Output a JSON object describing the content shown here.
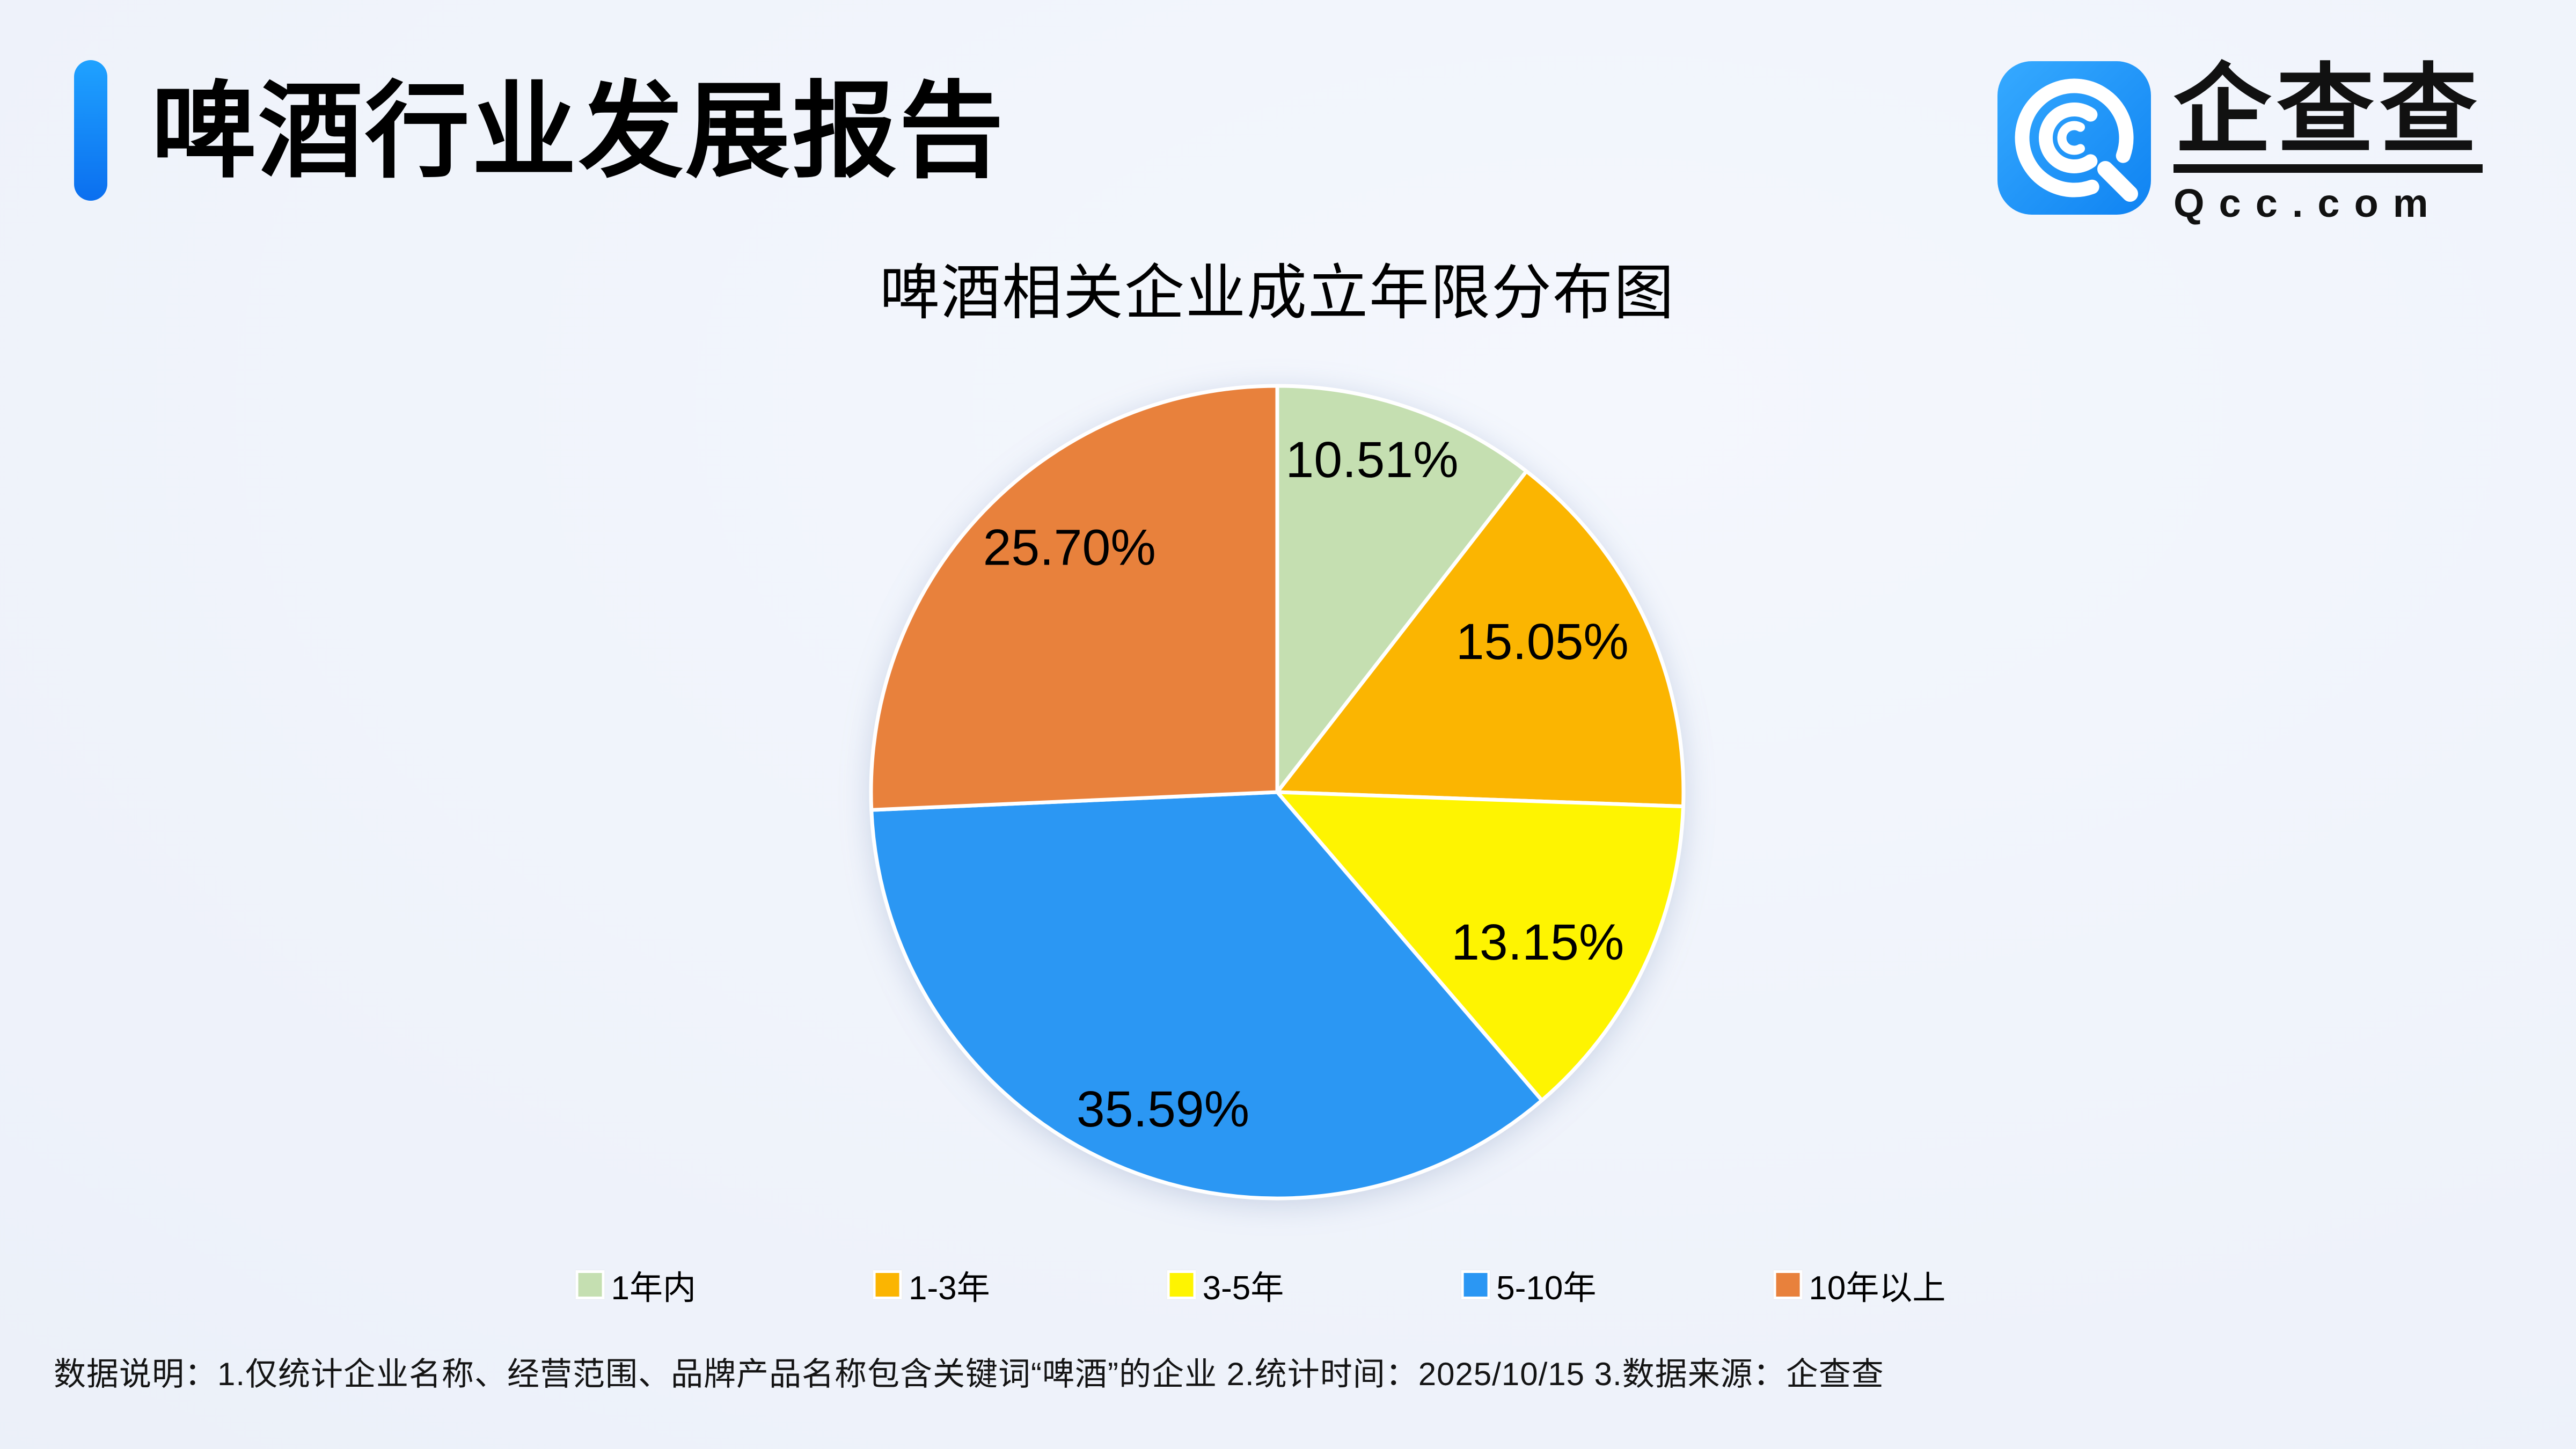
{
  "page": {
    "background_color": "#EEF2FA"
  },
  "header": {
    "title": "啤酒行业发展报告",
    "accent_color": "#1285FA"
  },
  "logo": {
    "name": "企查查",
    "domain": "Qcc.com",
    "icon": "qcc-q-spiral-icon",
    "icon_color": "#1E96FB"
  },
  "chart_data": {
    "type": "pie",
    "title": "啤酒相关企业成立年限分布图",
    "categories": [
      "1年内",
      "1-3年",
      "3-5年",
      "5-10年",
      "10年以上"
    ],
    "values": [
      10.51,
      15.05,
      13.15,
      35.59,
      25.7
    ],
    "labels": [
      "10.51%",
      "15.05%",
      "13.15%",
      "35.59%",
      "25.70%"
    ],
    "colors": [
      "#C5DFB1",
      "#FBB501",
      "#FEF401",
      "#2B97F3",
      "#E8813C"
    ],
    "unit": "%",
    "start_angle_deg": 0,
    "direction": "clockwise",
    "slice_border_color": "#FFFFFF",
    "label_color": "#000000",
    "legend_position": "bottom"
  },
  "footer": {
    "note": "数据说明：1.仅统计企业名称、经营范围、品牌产品名称包含关键词“啤酒”的企业  2.统计时间：2025/10/15  3.数据来源：企查查"
  }
}
